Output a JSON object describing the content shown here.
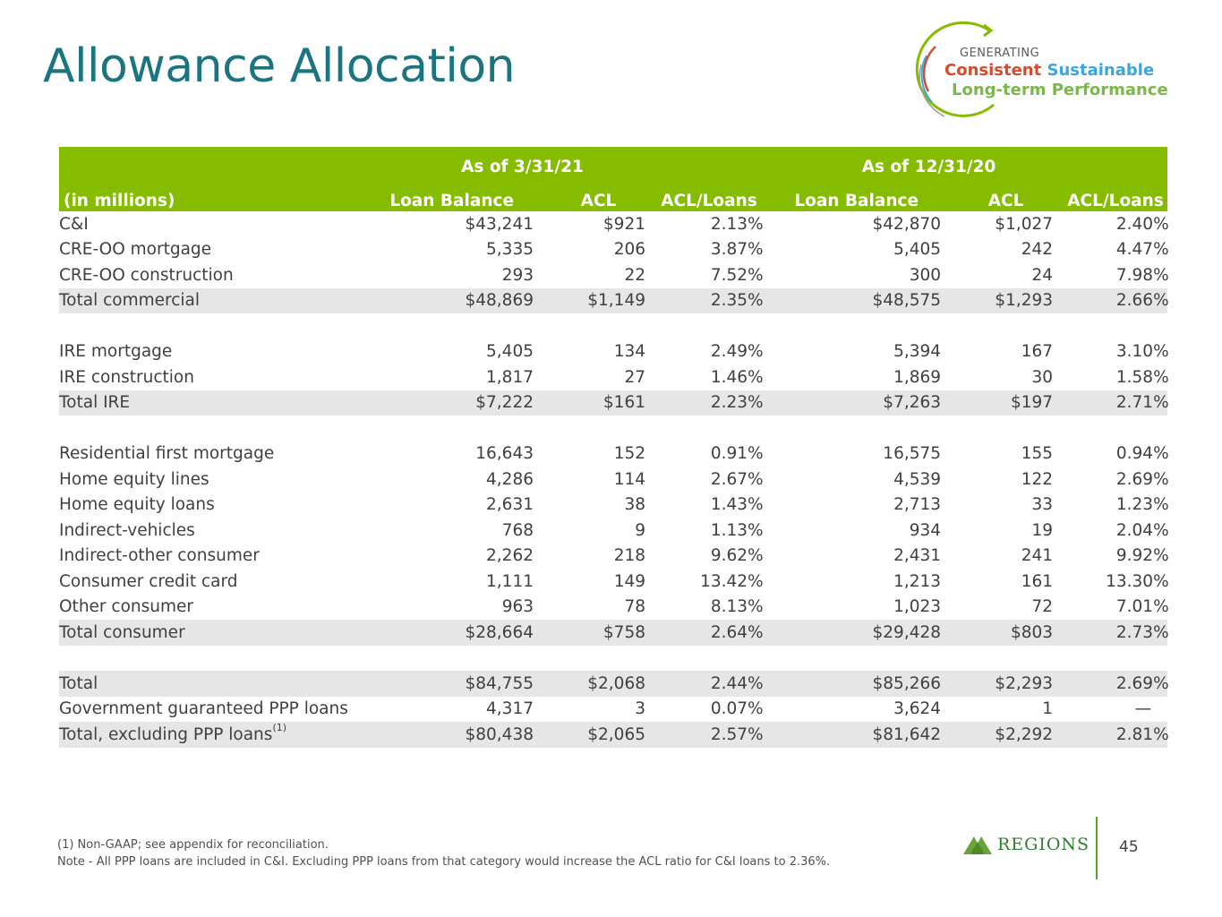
{
  "title": "Allowance Allocation",
  "logo": {
    "generating": "GENERATING",
    "consistent": "Consistent",
    "sustainable": "Sustainable",
    "longterm": "Long-term Performance"
  },
  "table": {
    "period1": "As of 3/31/21",
    "period2": "As of 12/31/20",
    "units_label": "(in millions)",
    "col_loan": "Loan Balance",
    "col_acl": "ACL",
    "col_ratio": "ACL/Loans",
    "pct": "%",
    "rows": {
      "ci": {
        "label": "C&I",
        "lb1": "$43,241",
        "acl1": "$921",
        "r1": "2.13",
        "lb2": "$42,870",
        "acl2": "$1,027",
        "r2": "2.40"
      },
      "creoo_mort": {
        "label": "CRE-OO mortgage",
        "lb1": "5,335",
        "acl1": "206",
        "r1": "3.87",
        "lb2": "5,405",
        "acl2": "242",
        "r2": "4.47"
      },
      "creoo_cons": {
        "label": "CRE-OO construction",
        "lb1": "293",
        "acl1": "22",
        "r1": "7.52",
        "lb2": "300",
        "acl2": "24",
        "r2": "7.98"
      },
      "total_comm": {
        "label": "Total commercial",
        "lb1": "$48,869",
        "acl1": "$1,149",
        "r1": "2.35",
        "lb2": "$48,575",
        "acl2": "$1,293",
        "r2": "2.66"
      },
      "ire_mort": {
        "label": "IRE mortgage",
        "lb1": "5,405",
        "acl1": "134",
        "r1": "2.49",
        "lb2": "5,394",
        "acl2": "167",
        "r2": "3.10"
      },
      "ire_cons": {
        "label": "IRE construction",
        "lb1": "1,817",
        "acl1": "27",
        "r1": "1.46",
        "lb2": "1,869",
        "acl2": "30",
        "r2": "1.58"
      },
      "total_ire": {
        "label": "Total IRE",
        "lb1": "$7,222",
        "acl1": "$161",
        "r1": "2.23",
        "lb2": "$7,263",
        "acl2": "$197",
        "r2": "2.71"
      },
      "res_first": {
        "label": "Residential first mortgage",
        "lb1": "16,643",
        "acl1": "152",
        "r1": "0.91",
        "lb2": "16,575",
        "acl2": "155",
        "r2": "0.94"
      },
      "home_lines": {
        "label": "Home equity lines",
        "lb1": "4,286",
        "acl1": "114",
        "r1": "2.67",
        "lb2": "4,539",
        "acl2": "122",
        "r2": "2.69"
      },
      "home_loans": {
        "label": "Home equity loans",
        "lb1": "2,631",
        "acl1": "38",
        "r1": "1.43",
        "lb2": "2,713",
        "acl2": "33",
        "r2": "1.23"
      },
      "ind_veh": {
        "label": "Indirect-vehicles",
        "lb1": "768",
        "acl1": "9",
        "r1": "1.13",
        "lb2": "934",
        "acl2": "19",
        "r2": "2.04"
      },
      "ind_other": {
        "label": "Indirect-other consumer",
        "lb1": "2,262",
        "acl1": "218",
        "r1": "9.62",
        "lb2": "2,431",
        "acl2": "241",
        "r2": "9.92"
      },
      "cc": {
        "label": "Consumer credit card",
        "lb1": "1,111",
        "acl1": "149",
        "r1": "13.42",
        "lb2": "1,213",
        "acl2": "161",
        "r2": "13.30"
      },
      "other_cons": {
        "label": "Other consumer",
        "lb1": "963",
        "acl1": "78",
        "r1": "8.13",
        "lb2": "1,023",
        "acl2": "72",
        "r2": "7.01"
      },
      "total_cons": {
        "label": "Total consumer",
        "lb1": "$28,664",
        "acl1": "$758",
        "r1": "2.64",
        "lb2": "$29,428",
        "acl2": "$803",
        "r2": "2.73"
      },
      "total": {
        "label": "Total",
        "lb1": "$84,755",
        "acl1": "$2,068",
        "r1": "2.44",
        "lb2": "$85,266",
        "acl2": "$2,293",
        "r2": "2.69"
      },
      "ppp": {
        "label": "Government guaranteed PPP loans",
        "lb1": "4,317",
        "acl1": "3",
        "r1": "0.07",
        "lb2": "3,624",
        "acl2": "1",
        "r2": "—"
      },
      "excl_ppp": {
        "label": "Total, excluding PPP loans",
        "sup": "(1)",
        "lb1": "$80,438",
        "acl1": "$2,065",
        "r1": "2.57",
        "lb2": "$81,642",
        "acl2": "$2,292",
        "r2": "2.81"
      }
    }
  },
  "footnotes": {
    "note1": "(1) Non-GAAP; see appendix for reconciliation.",
    "note2": "Note - All PPP loans are included in C&I. Excluding PPP loans from that category would increase the ACL ratio for C&I loans to 2.36%."
  },
  "brand": {
    "name": "REGIONS"
  },
  "page_number": "45"
}
